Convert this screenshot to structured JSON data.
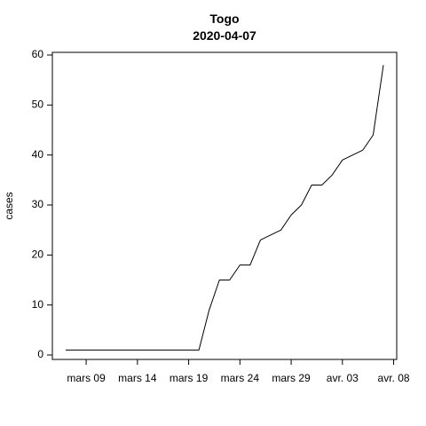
{
  "chart_data": {
    "type": "line",
    "title": "Togo",
    "subtitle": "2020-04-07",
    "xlabel": "",
    "ylabel": "cases",
    "ylim": [
      0,
      60
    ],
    "y_ticks": [
      "0",
      "10",
      "20",
      "30",
      "40",
      "50",
      "60"
    ],
    "x_ticks": [
      {
        "label": "mars 09",
        "date": "2020-03-09"
      },
      {
        "label": "mars 14",
        "date": "2020-03-14"
      },
      {
        "label": "mars 19",
        "date": "2020-03-19"
      },
      {
        "label": "mars 24",
        "date": "2020-03-24"
      },
      {
        "label": "mars 29",
        "date": "2020-03-29"
      },
      {
        "label": "avr. 03",
        "date": "2020-04-03"
      },
      {
        "label": "avr. 08",
        "date": "2020-04-08"
      }
    ],
    "xlim": [
      "2020-03-06",
      "2020-04-08"
    ],
    "grid": false,
    "series_color": "#000000",
    "series": [
      {
        "x": [
          "2020-03-07",
          "2020-03-08",
          "2020-03-09",
          "2020-03-10",
          "2020-03-11",
          "2020-03-12",
          "2020-03-13",
          "2020-03-14",
          "2020-03-15",
          "2020-03-16",
          "2020-03-17",
          "2020-03-18",
          "2020-03-19",
          "2020-03-20",
          "2020-03-21",
          "2020-03-22",
          "2020-03-23",
          "2020-03-24",
          "2020-03-25",
          "2020-03-26",
          "2020-03-27",
          "2020-03-28",
          "2020-03-29",
          "2020-03-30",
          "2020-03-31",
          "2020-04-01",
          "2020-04-02",
          "2020-04-03",
          "2020-04-04",
          "2020-04-05",
          "2020-04-06",
          "2020-04-07"
        ],
        "values": [
          1,
          1,
          1,
          1,
          1,
          1,
          1,
          1,
          1,
          1,
          1,
          1,
          1,
          1,
          9,
          15,
          15,
          18,
          18,
          23,
          24,
          25,
          28,
          30,
          34,
          34,
          36,
          39,
          40,
          41,
          44,
          58
        ]
      }
    ]
  }
}
